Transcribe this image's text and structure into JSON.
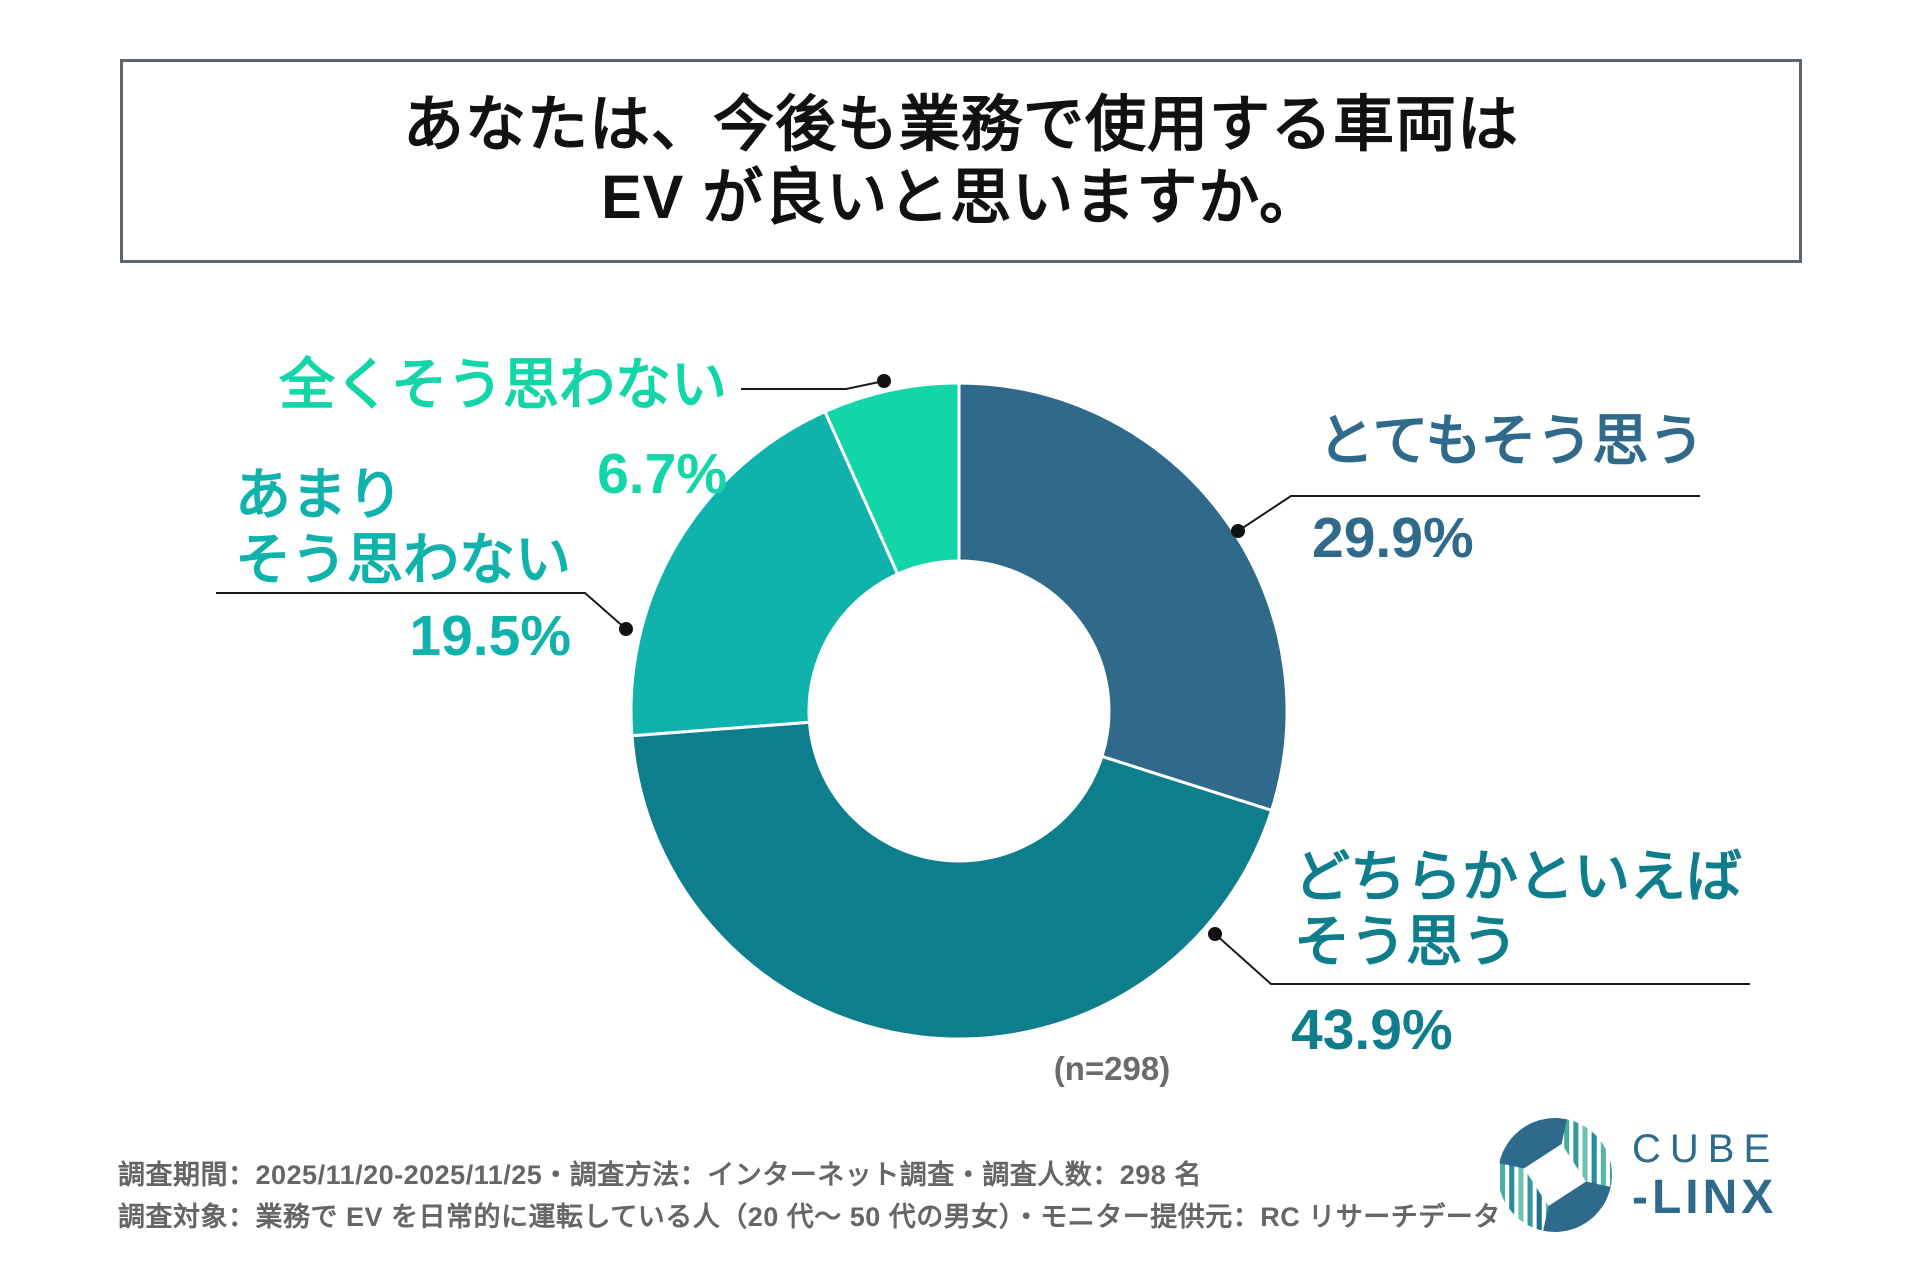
{
  "title": {
    "line1": "あなたは、今後も業務で使用する車両は",
    "line2": "EV が良いと思いますか。"
  },
  "chart_data": {
    "type": "pie",
    "donut": true,
    "start_angle_deg": 0,
    "direction": "clockwise",
    "sample_size_label": "(n=298)",
    "slices": [
      {
        "label": "とてもそう思う",
        "value": 29.9,
        "pct_label": "29.9%",
        "color": "#2f6a8b"
      },
      {
        "label": "どちらかといえばそう思う",
        "value": 43.9,
        "pct_label": "43.9%",
        "color": "#0e7e8c"
      },
      {
        "label": "あまりそう思わない",
        "value": 19.5,
        "pct_label": "19.5%",
        "color": "#0fb3ab"
      },
      {
        "label": "全くそう思わない",
        "value": 6.7,
        "pct_label": "6.7%",
        "color": "#12d6a7"
      }
    ]
  },
  "callouts": {
    "strongly": {
      "line1": "とてもそう思う",
      "pct": "29.9%"
    },
    "somewhat": {
      "line1": "どちらかといえば",
      "line2": "そう思う",
      "pct": "43.9%"
    },
    "not_really": {
      "line1": "あまり",
      "line2": "そう思わない",
      "pct": "19.5%"
    },
    "not_at_all": {
      "line1": "全くそう思わない",
      "pct": "6.7%"
    }
  },
  "sample": {
    "n": "(n=298)"
  },
  "footer": {
    "line1": "調査期間：2025/11/20-2025/11/25・調査方法：インターネット調査・調査人数：298 名",
    "line2": "調査対象：業務で EV を日常的に運転している人（20 代〜 50 代の男女）・モニター提供元：RC リサーチデータ"
  },
  "logo": {
    "top": "CUBE",
    "bottom": "-LINX"
  }
}
